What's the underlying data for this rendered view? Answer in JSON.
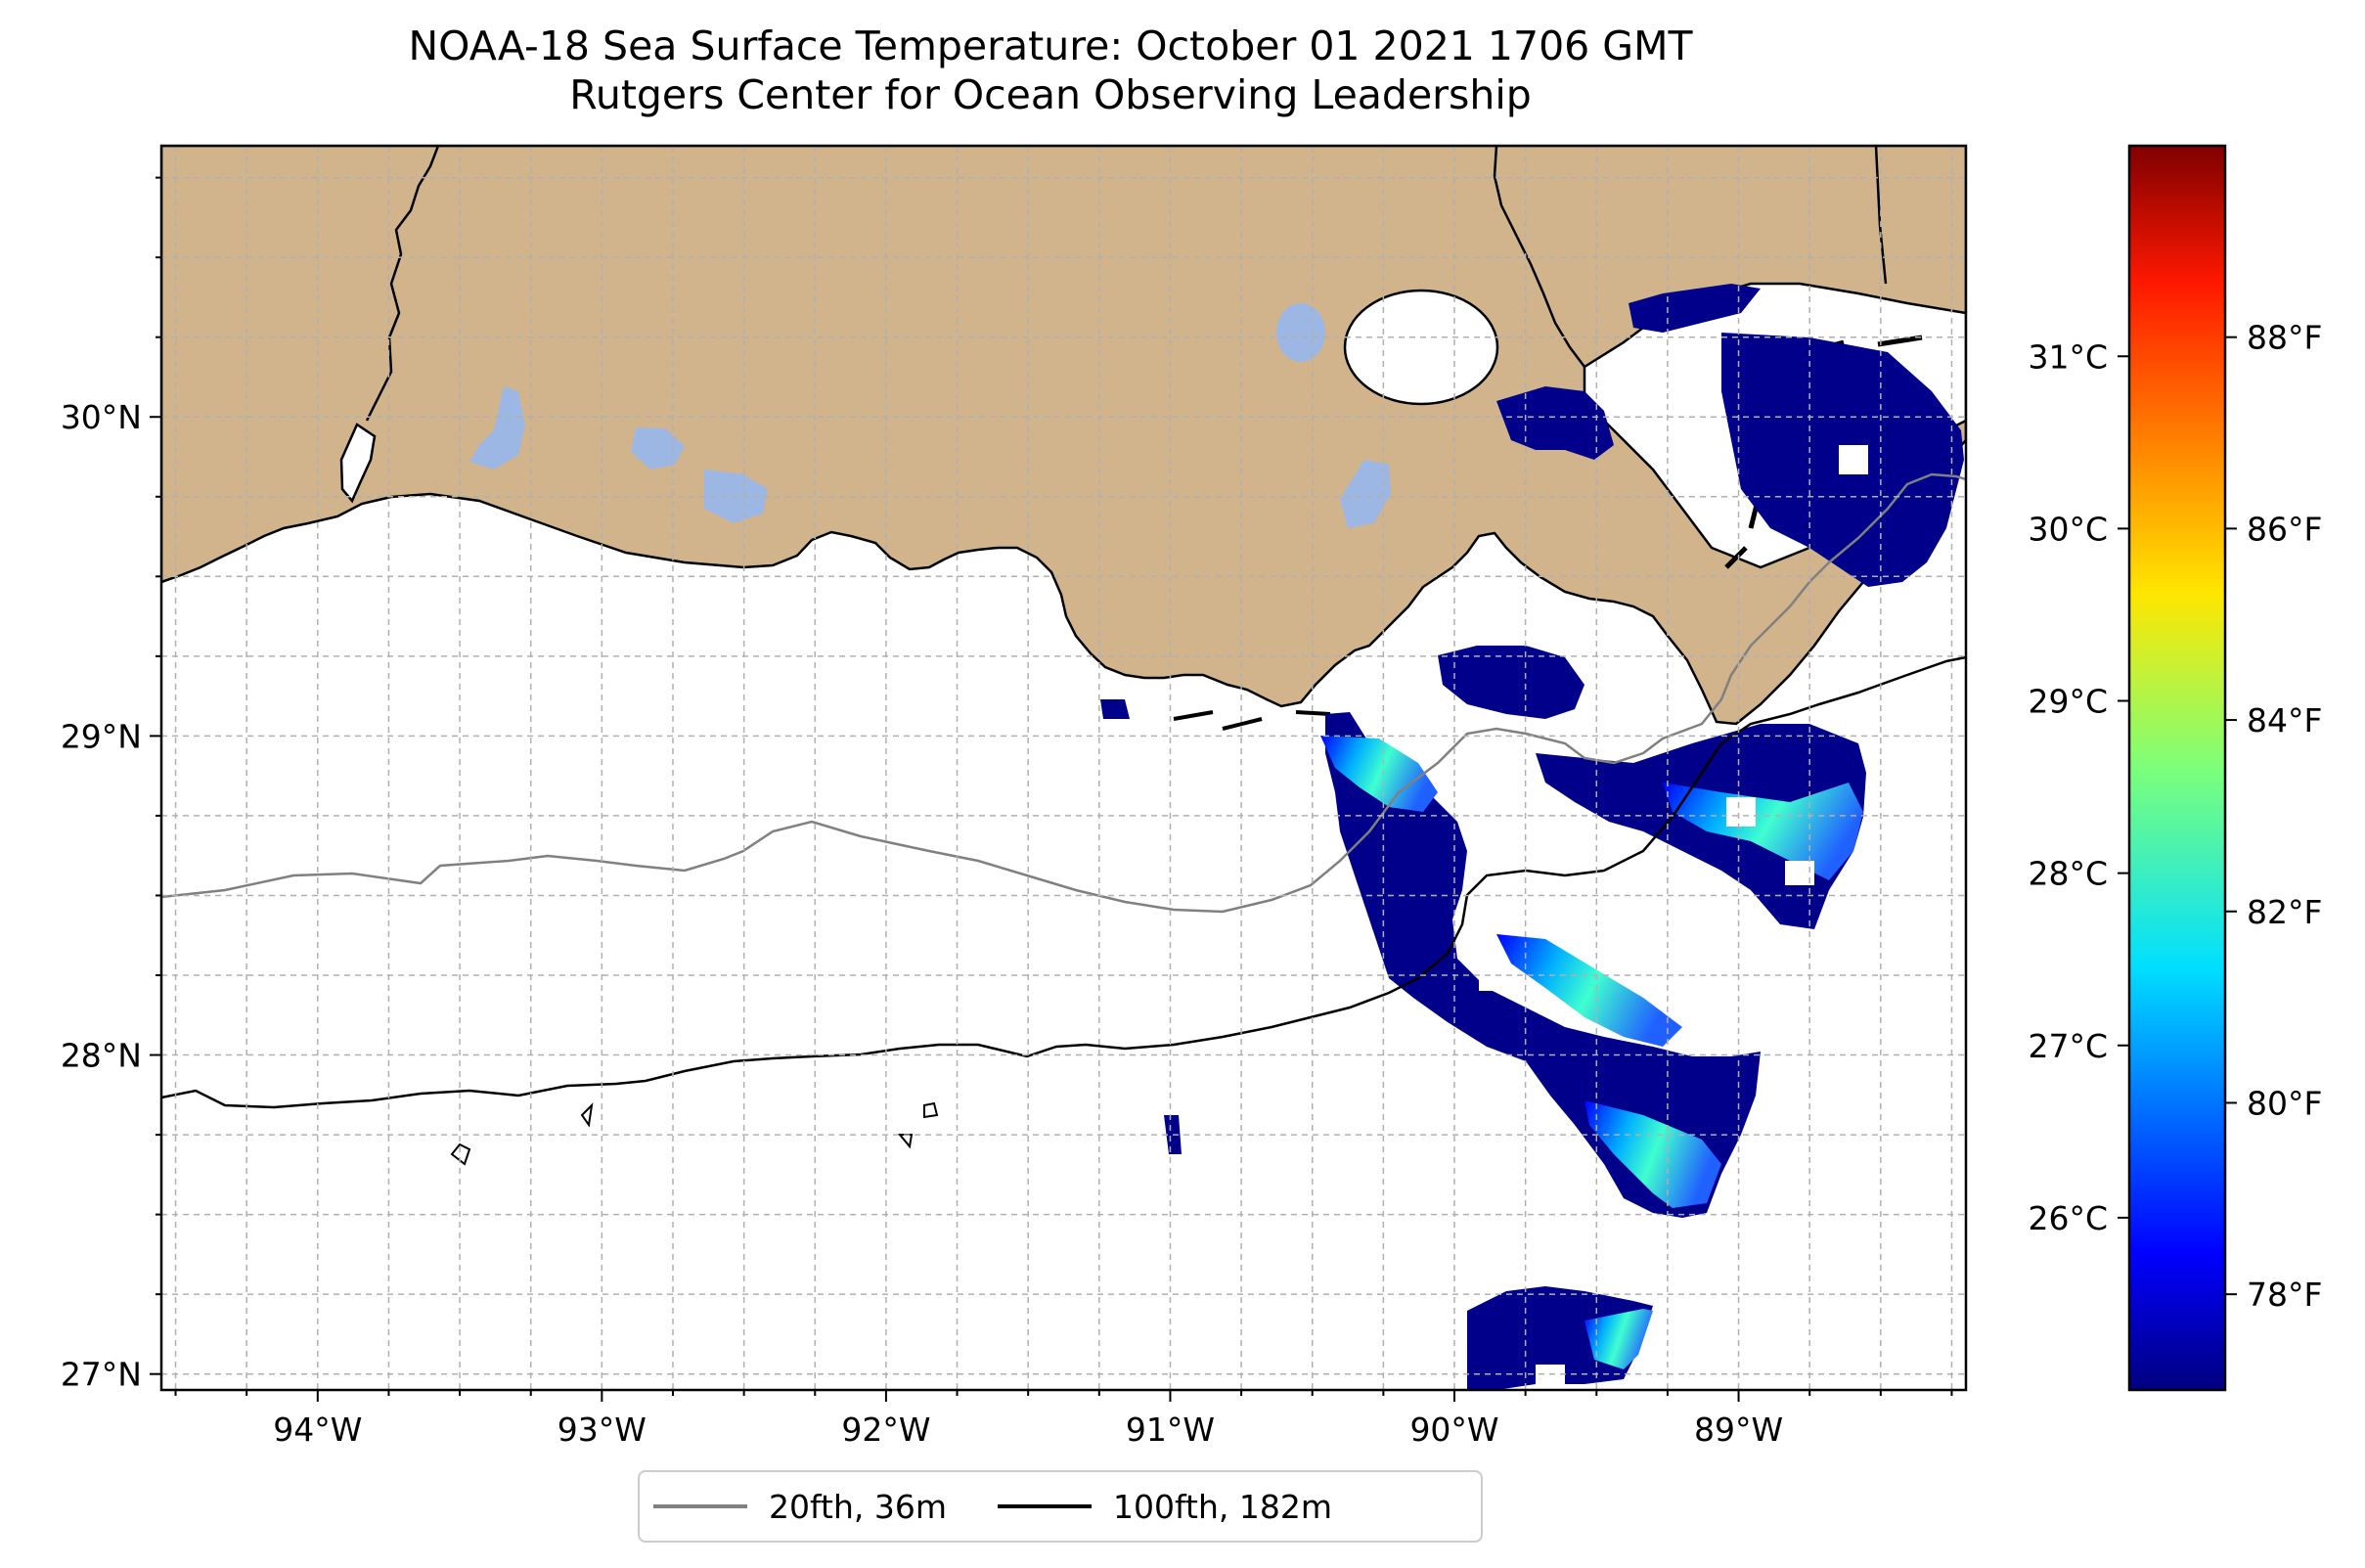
{
  "title": {
    "line1": "NOAA-18 Sea Surface Temperature: October 01 2021 1706 GMT",
    "line2": "Rutgers Center for Ocean Observing Leadership"
  },
  "map": {
    "lon_range": [
      -94.55,
      -88.2
    ],
    "lat_range": [
      26.95,
      30.85
    ],
    "grid": true,
    "lon_ticks": [
      {
        "value": -94,
        "label": "94°W"
      },
      {
        "value": -93,
        "label": "93°W"
      },
      {
        "value": -92,
        "label": "92°W"
      },
      {
        "value": -91,
        "label": "91°W"
      },
      {
        "value": -90,
        "label": "90°W"
      },
      {
        "value": -89,
        "label": "89°W"
      }
    ],
    "lat_ticks": [
      {
        "value": 27,
        "label": "27°N"
      },
      {
        "value": 28,
        "label": "28°N"
      },
      {
        "value": 29,
        "label": "29°N"
      },
      {
        "value": 30,
        "label": "30°N"
      }
    ],
    "colors": {
      "land": "#d2b48c",
      "lakes": "#9cb7e4",
      "ocean": "#ffffff",
      "coastline": "#000000",
      "grid": "#b0b0b0"
    }
  },
  "colorbar": {
    "colormap": "jet",
    "celsius_ticks": [
      {
        "value": 26,
        "label": "26°C"
      },
      {
        "value": 27,
        "label": "27°C"
      },
      {
        "value": 28,
        "label": "28°C"
      },
      {
        "value": 29,
        "label": "29°C"
      },
      {
        "value": 30,
        "label": "30°C"
      },
      {
        "value": 31,
        "label": "31°C"
      }
    ],
    "fahrenheit_ticks": [
      {
        "value": 78,
        "label": "78°F"
      },
      {
        "value": 80,
        "label": "80°F"
      },
      {
        "value": 82,
        "label": "82°F"
      },
      {
        "value": 84,
        "label": "84°F"
      },
      {
        "value": 86,
        "label": "86°F"
      },
      {
        "value": 88,
        "label": "88°F"
      }
    ],
    "range_f": [
      77,
      90
    ]
  },
  "legend": {
    "entries": [
      {
        "label": "20fth, 36m",
        "color": "#808080"
      },
      {
        "label": "100fth, 182m",
        "color": "#000000"
      }
    ]
  }
}
